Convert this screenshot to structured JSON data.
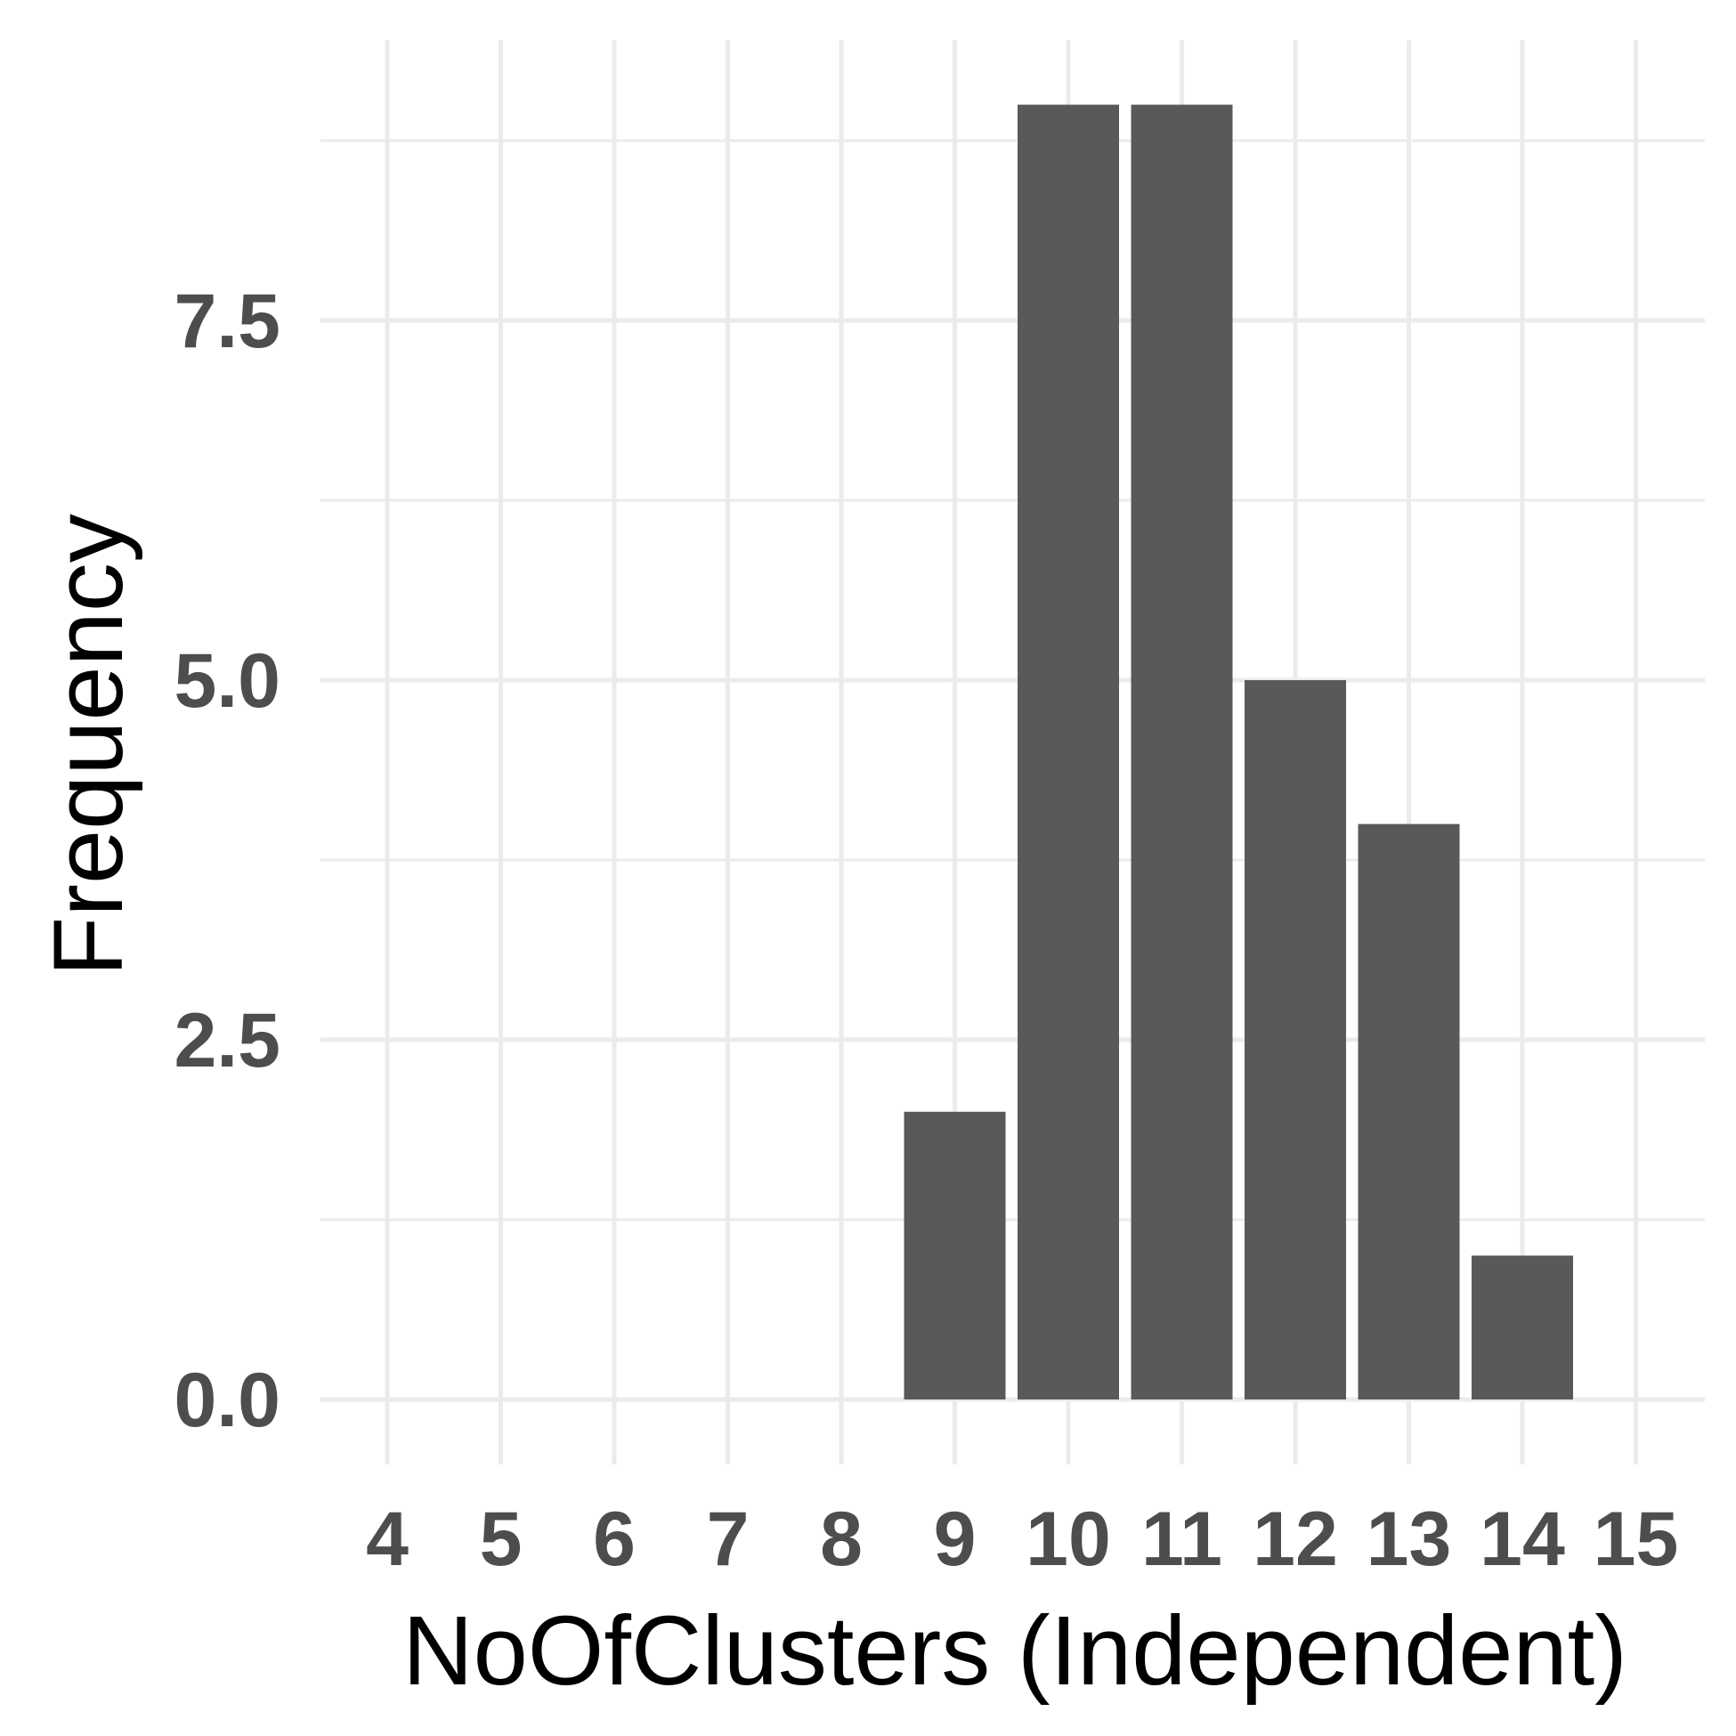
{
  "chart_data": {
    "type": "bar",
    "title": "",
    "xlabel": "NoOfClusters (Independent)",
    "ylabel": "Frequency",
    "x_ticks": [
      "4",
      "5",
      "6",
      "7",
      "8",
      "9",
      "10",
      "11",
      "12",
      "13",
      "14",
      "15"
    ],
    "categories": [
      9,
      10,
      11,
      12,
      13,
      14
    ],
    "values": [
      2,
      9,
      9,
      5,
      4,
      1
    ],
    "y_ticks": [
      "0.0",
      "2.5",
      "5.0",
      "7.5"
    ],
    "xlim": [
      3.8,
      15
    ],
    "ylim": [
      0,
      9.4
    ],
    "grid": true,
    "legend": "none",
    "bar_color": "#595959",
    "grid_color": "#ebebeb"
  }
}
